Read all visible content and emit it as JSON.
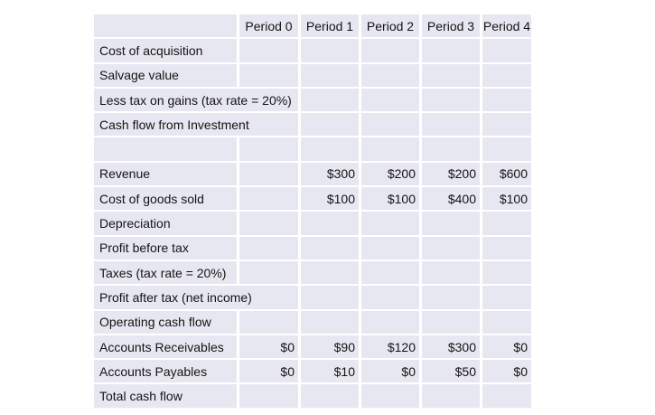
{
  "table": {
    "columns": [
      {
        "id": "label",
        "label": ""
      },
      {
        "id": "period-0",
        "label": "Period 0"
      },
      {
        "id": "period-1",
        "label": "Period 1"
      },
      {
        "id": "period-2",
        "label": "Period 2"
      },
      {
        "id": "period-3",
        "label": "Period 3"
      },
      {
        "id": "period-4",
        "label": "Period 4"
      }
    ],
    "rows": [
      {
        "id": "cost-of-acquisition",
        "label": "Cost of acquisition",
        "label_span": 1,
        "values": [
          "",
          "",
          "",
          "",
          ""
        ]
      },
      {
        "id": "salvage-value",
        "label": "Salvage value",
        "label_span": 1,
        "values": [
          "",
          "",
          "",
          "",
          ""
        ]
      },
      {
        "id": "less-tax-on-gains",
        "label": "Less tax on gains (tax rate = 20%)",
        "label_span": 2,
        "values": [
          "",
          "",
          "",
          "",
          ""
        ]
      },
      {
        "id": "cash-flow-from-investment",
        "label": "Cash flow from Investment",
        "label_span": 2,
        "values": [
          "",
          "",
          "",
          "",
          ""
        ]
      },
      {
        "id": "spacer",
        "label": "",
        "label_span": 1,
        "values": [
          "",
          "",
          "",
          "",
          ""
        ]
      },
      {
        "id": "revenue",
        "label": "Revenue",
        "label_span": 1,
        "values": [
          "",
          "$300",
          "$200",
          "$200",
          "$600"
        ]
      },
      {
        "id": "cost-of-goods-sold",
        "label": "Cost of goods sold",
        "label_span": 1,
        "values": [
          "",
          "$100",
          "$100",
          "$400",
          "$100"
        ]
      },
      {
        "id": "depreciation",
        "label": "Depreciation",
        "label_span": 1,
        "values": [
          "",
          "",
          "",
          "",
          ""
        ]
      },
      {
        "id": "profit-before-tax",
        "label": "Profit before tax",
        "label_span": 1,
        "values": [
          "",
          "",
          "",
          "",
          ""
        ]
      },
      {
        "id": "taxes",
        "label": "Taxes (tax rate = 20%)",
        "label_span": 1,
        "values": [
          "",
          "",
          "",
          "",
          ""
        ]
      },
      {
        "id": "profit-after-tax",
        "label": "Profit after tax (net income)",
        "label_span": 2,
        "values": [
          "",
          "",
          "",
          "",
          ""
        ]
      },
      {
        "id": "operating-cash-flow",
        "label": "Operating cash flow",
        "label_span": 1,
        "values": [
          "",
          "",
          "",
          "",
          ""
        ]
      },
      {
        "id": "accounts-receivables",
        "label": "Accounts Receivables",
        "label_span": 1,
        "values": [
          "$0",
          "$90",
          "$120",
          "$300",
          "$0"
        ]
      },
      {
        "id": "accounts-payables",
        "label": "Accounts Payables",
        "label_span": 1,
        "values": [
          "$0",
          "$10",
          "$0",
          "$50",
          "$0"
        ]
      },
      {
        "id": "total-cash-flow",
        "label": "Total cash flow",
        "label_span": 1,
        "values": [
          "",
          "",
          "",
          "",
          ""
        ]
      }
    ],
    "colors": {
      "cell_bg": "#E7E7F1",
      "grid_gap": "#FFFFFF",
      "text": "#141414"
    }
  }
}
